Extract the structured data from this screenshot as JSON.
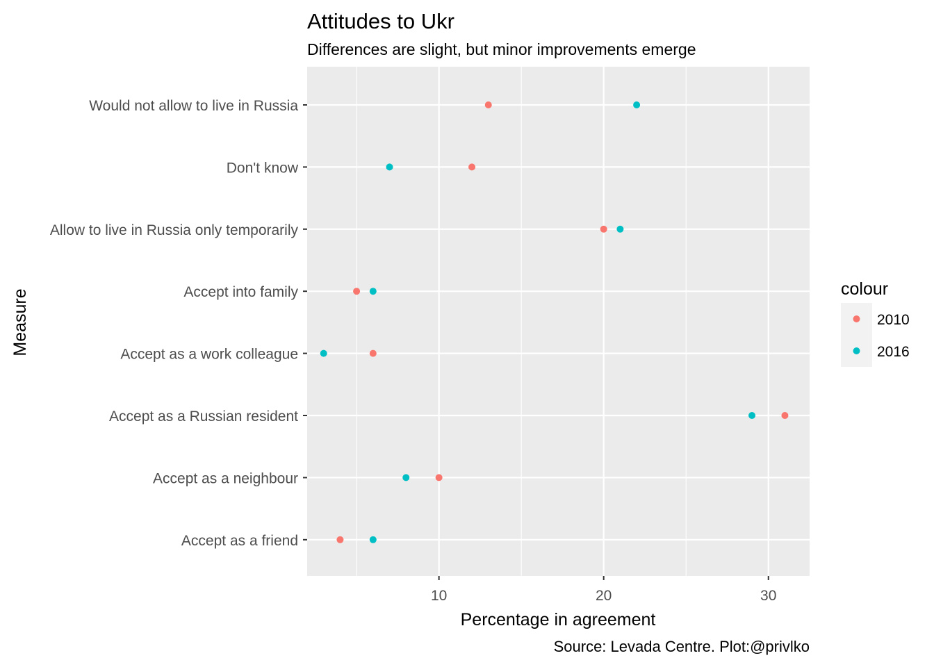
{
  "chart_data": {
    "type": "scatter",
    "title": "Attitudes to Ukr",
    "subtitle": "Differences are slight, but minor improvements emerge",
    "caption": "Source: Levada Centre. Plot:@privlko",
    "xlabel": "Percentage in agreement",
    "ylabel": "Measure",
    "xlim": [
      2.0,
      32.5
    ],
    "x_ticks": [
      10,
      20,
      30
    ],
    "grid": true,
    "categories": [
      "Would not allow to live in Russia",
      "Don't know",
      "Allow to live in Russia only temporarily",
      "Accept into family",
      "Accept as a work colleague",
      "Accept as a Russian resident",
      "Accept as a neighbour",
      "Accept as a friend"
    ],
    "series": [
      {
        "name": "2010",
        "color": "#F8766D",
        "values": [
          13,
          12,
          20,
          5,
          6,
          31,
          10,
          4
        ]
      },
      {
        "name": "2016",
        "color": "#00BFC4",
        "values": [
          22,
          7,
          21,
          6,
          3,
          29,
          8,
          6
        ]
      }
    ],
    "legend": {
      "title": "colour",
      "position": "right"
    }
  }
}
